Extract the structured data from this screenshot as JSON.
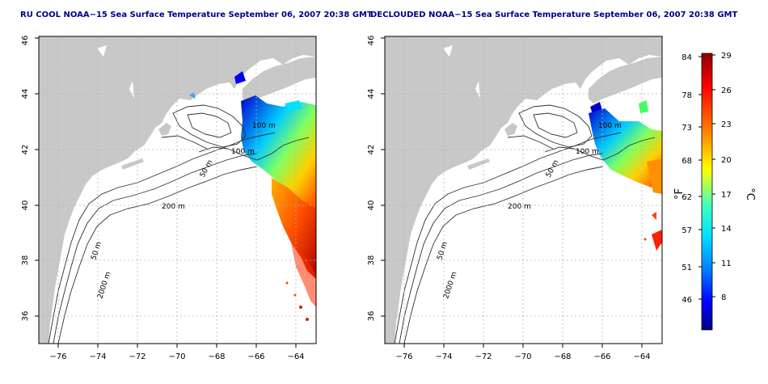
{
  "panels": [
    {
      "title": "RU COOL NOAA−15 Sea Surface Temperature September 06, 2007 20:38 GMT",
      "contour_labels": [
        "100 m",
        "100 m",
        "50 m",
        "200 m",
        "50 m",
        "2000 m"
      ]
    },
    {
      "title": "DECLOUDED NOAA−15 Sea Surface Temperature September 06, 2007 20:38 GMT",
      "contour_labels": [
        "100 m",
        "100 m",
        "50 m",
        "200 m",
        "50 m",
        "2000 m"
      ]
    }
  ],
  "axes": {
    "x_ticks": [
      "−76",
      "−74",
      "−72",
      "−70",
      "−68",
      "−66",
      "−64"
    ],
    "y_ticks": [
      "36",
      "38",
      "40",
      "42",
      "44",
      "46"
    ]
  },
  "colorbar": {
    "fahrenheit_label": "°F",
    "celsius_label": "°C",
    "fahrenheit_ticks": [
      "84",
      "78",
      "73",
      "68",
      "62",
      "57",
      "51",
      "46"
    ],
    "celsius_ticks": [
      "29",
      "26",
      "23",
      "20",
      "17",
      "14",
      "11",
      "8"
    ],
    "gradient_colors": [
      "#00008b",
      "#0000ff",
      "#0080ff",
      "#00e0ff",
      "#40ffc0",
      "#ffff00",
      "#ff8000",
      "#ff0000",
      "#8b0000"
    ]
  },
  "colors": {
    "land": "#c8c8c8",
    "water": "#ffffff",
    "frame": "#000000",
    "grid": "#b4b4b4",
    "title": "#00008b"
  }
}
